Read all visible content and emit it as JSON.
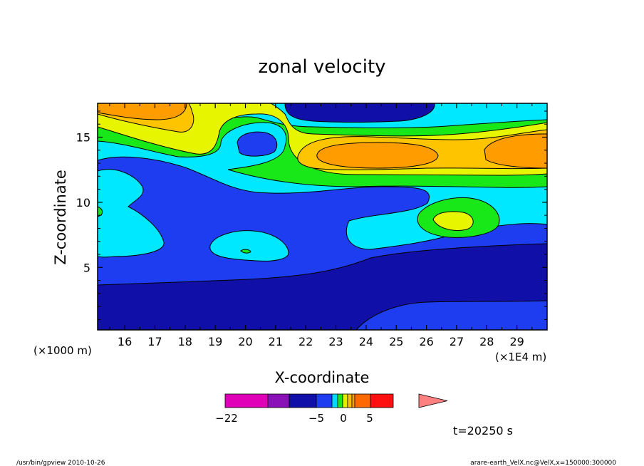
{
  "chart_data": {
    "type": "heatmap",
    "title": "zonal velocity",
    "xlabel": "X-coordinate",
    "ylabel": "Z-coordinate",
    "x_scale_note": "(×1E4 m)",
    "y_scale_note": "(×1000 m)",
    "xlim": [
      15.1,
      30.0
    ],
    "ylim": [
      0.2,
      17.6
    ],
    "x_ticks": [
      "16",
      "17",
      "18",
      "19",
      "20",
      "21",
      "22",
      "23",
      "24",
      "25",
      "26",
      "27",
      "28",
      "29"
    ],
    "x_tick_values": [
      16,
      17,
      18,
      19,
      20,
      21,
      22,
      23,
      24,
      25,
      26,
      27,
      28,
      29
    ],
    "y_ticks": [
      "5",
      "10",
      "15"
    ],
    "y_tick_values": [
      5,
      10,
      15
    ],
    "colorbar": {
      "tick_labels": [
        "−22",
        "−5",
        "0",
        "5"
      ],
      "colors": [
        "#e000b8",
        "#8a10b8",
        "#1010a8",
        "#1e3cf0",
        "#00d8ff",
        "#18e818",
        "#e0f000",
        "#ffc000",
        "#ffa000",
        "#ff6a00",
        "#ff1010",
        "#ff8080"
      ]
    },
    "time_label": "t=20250 s",
    "footer_left": "/usr/bin/gpview   2010-10-26",
    "footer_right": "arare-earth_VelX.nc@VelX,x=150000:300000"
  }
}
